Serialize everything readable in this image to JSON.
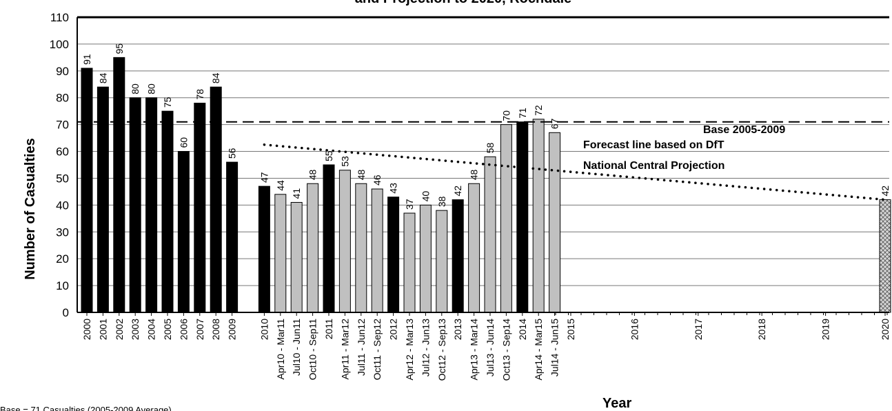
{
  "chart_data": {
    "type": "bar",
    "title": "and Projection to 2020, Rochdale",
    "xlabel": "Year",
    "ylabel": "Number of Casualties",
    "ylim": [
      0,
      110
    ],
    "yticks": [
      "0",
      "10",
      "20",
      "30",
      "40",
      "50",
      "60",
      "70",
      "80",
      "90",
      "100",
      "110"
    ],
    "grid": true,
    "colors": {
      "annual": "#000000",
      "rolling": "#c0c0c0",
      "target": "#d8d8d8",
      "axis": "#000000"
    },
    "bars": [
      {
        "label": "2000",
        "value": 91,
        "kind": "annual"
      },
      {
        "label": "2001",
        "value": 84,
        "kind": "annual"
      },
      {
        "label": "2002",
        "value": 95,
        "kind": "annual"
      },
      {
        "label": "2003",
        "value": 80,
        "kind": "annual"
      },
      {
        "label": "2004",
        "value": 80,
        "kind": "annual"
      },
      {
        "label": "2005",
        "value": 75,
        "kind": "annual"
      },
      {
        "label": "2006",
        "value": 60,
        "kind": "annual"
      },
      {
        "label": "2007",
        "value": 78,
        "kind": "annual"
      },
      {
        "label": "2008",
        "value": 84,
        "kind": "annual"
      },
      {
        "label": "2009",
        "value": 56,
        "kind": "annual"
      },
      {
        "label": "2010",
        "value": 47,
        "kind": "annual"
      },
      {
        "label": "Apr10 - Mar11",
        "value": 44,
        "kind": "rolling"
      },
      {
        "label": "Jul10 - Jun11",
        "value": 41,
        "kind": "rolling"
      },
      {
        "label": "Oct10 - Sep11",
        "value": 48,
        "kind": "rolling"
      },
      {
        "label": "2011",
        "value": 55,
        "kind": "annual"
      },
      {
        "label": "Apr11 - Mar12",
        "value": 53,
        "kind": "rolling"
      },
      {
        "label": "Jul11 - Jun12",
        "value": 48,
        "kind": "rolling"
      },
      {
        "label": "Oct11 - Sep12",
        "value": 46,
        "kind": "rolling"
      },
      {
        "label": "2012",
        "value": 43,
        "kind": "annual"
      },
      {
        "label": "Apr12 - Mar13",
        "value": 37,
        "kind": "rolling"
      },
      {
        "label": "Jul12 - Jun13",
        "value": 40,
        "kind": "rolling"
      },
      {
        "label": "Oct12 - Sep13",
        "value": 38,
        "kind": "rolling"
      },
      {
        "label": "2013",
        "value": 42,
        "kind": "annual"
      },
      {
        "label": "Apr13 - Mar14",
        "value": 48,
        "kind": "rolling"
      },
      {
        "label": "Jul13 - Jun14",
        "value": 58,
        "kind": "rolling"
      },
      {
        "label": "Oct13 - Sep14",
        "value": 70,
        "kind": "rolling"
      },
      {
        "label": "2014",
        "value": 71,
        "kind": "annual"
      },
      {
        "label": "Apr14 - Mar15",
        "value": 72,
        "kind": "rolling"
      },
      {
        "label": "Jul14 - Jun15",
        "value": 67,
        "kind": "rolling"
      },
      {
        "label": "2015",
        "value": null,
        "kind": "annual"
      },
      {
        "label": "2016",
        "value": null,
        "kind": "annual"
      },
      {
        "label": "2017",
        "value": null,
        "kind": "annual"
      },
      {
        "label": "2018",
        "value": null,
        "kind": "annual"
      },
      {
        "label": "2019",
        "value": null,
        "kind": "annual"
      },
      {
        "label": "2020",
        "value": 42,
        "kind": "target"
      }
    ],
    "baseline": {
      "value": 71,
      "label": "Base 2005-2009"
    },
    "forecast": {
      "label_line1": "Forecast line based on DfT",
      "label_line2": "National Central Projection",
      "from": {
        "category": "2010",
        "value": 62.5
      },
      "to": {
        "category": "2020",
        "value": 42
      }
    },
    "note": "Base = 71 Casualties (2005-2009 Average)"
  }
}
